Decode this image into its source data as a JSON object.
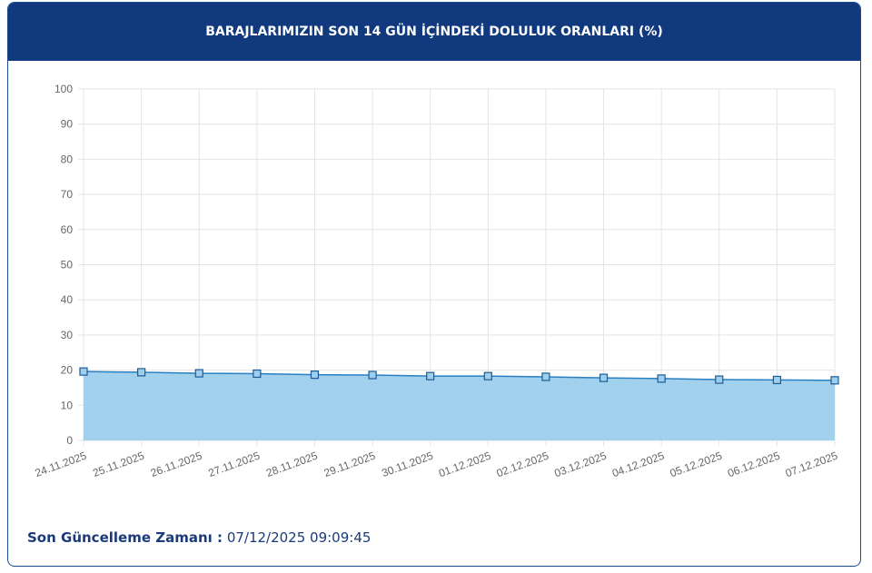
{
  "chart_data": {
    "type": "area",
    "title": "BARAJLARIMIZIN SON 14 GÜN İÇİNDEKİ DOLULUK ORANLARI (%)",
    "categories": [
      "24.11.2025",
      "25.11.2025",
      "26.11.2025",
      "27.11.2025",
      "28.11.2025",
      "29.11.2025",
      "30.11.2025",
      "01.12.2025",
      "02.12.2025",
      "03.12.2025",
      "04.12.2025",
      "05.12.2025",
      "06.12.2025",
      "07.12.2025"
    ],
    "values": [
      19.6,
      19.4,
      19.1,
      19.0,
      18.7,
      18.6,
      18.3,
      18.3,
      18.1,
      17.8,
      17.6,
      17.3,
      17.2,
      17.1
    ],
    "color": "#2a7fc0",
    "fill_color": "#9dcfec",
    "ylim": [
      0,
      100
    ],
    "yticks": [
      0,
      10,
      20,
      30,
      40,
      50,
      60,
      70,
      80,
      90,
      100
    ],
    "grid": true
  },
  "footer": {
    "label": "Son Güncelleme Zamanı :",
    "value": "07/12/2025 09:09:45"
  }
}
